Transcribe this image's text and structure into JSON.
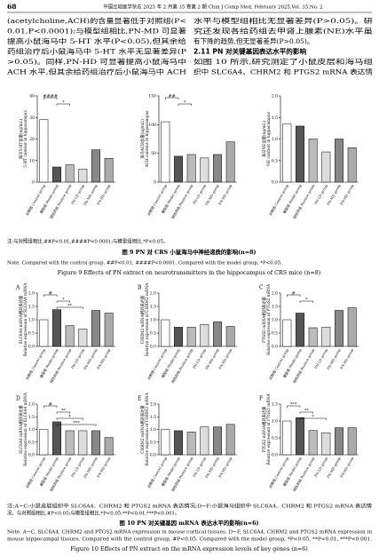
{
  "header": {
    "page": "68",
    "journal": "中国比较医学杂志 2025 年 2 月第 35 卷第 2 期  Chin J Comp Med, February 2025,Vol. 35,No. 2"
  },
  "text": {
    "left": [
      "(acetylcholine,ACH)的含量显著低于对照组(P<",
      "0.01,P<0.0001);与模型组相比,PN-MD 可显著",
      "提高小鼠海马中 5-HT 水平(P<0.05),但其余给",
      "药组治疗后小鼠海马中 5-HT 水平无显著差异(P",
      ">0.05)。同样,PN-HD 可显著提高小鼠海马中",
      "ACH 水平,但其余给药组治疗后小鼠海马中 ACH"
    ],
    "right_top": [
      "水平与模型组相比无显著差异(P>0.05)。研",
      "究还发现各给药组去甲肾上腺素(NE)水平虽",
      "有下降的趋势,但无显著差异(P>0.05)。"
    ],
    "section_heading": "2.11  PN 对关键基因表达水平的影响",
    "right_bottom": [
      "    如图 10 所示,研究测定了小鼠皮层和海马组",
      "织中 SLC6A4、CHRM2 和 PTGS2 mRNA 表达情"
    ]
  },
  "groups": [
    "对照组 Control group",
    "模型组 Model group",
    "阳性药组 Positive group",
    "PN-LD group",
    "PN-MD group",
    "PN-HD group"
  ],
  "group_colors": [
    "#ffffff",
    "#555555",
    "#bbbbbb",
    "#dddddd",
    "#888888",
    "#aaaaaa"
  ],
  "figure9": {
    "charts": [
      {
        "type": "bar",
        "ylabel_cn": "海马5-HT含量(ng/mL)",
        "ylabel_en": "5-HT content in hippocampus",
        "values": [
          29,
          7,
          8,
          6,
          15,
          11
        ],
        "ylim": [
          0,
          40
        ],
        "yticks": [
          0,
          10,
          20,
          30,
          40
        ],
        "annotations": [
          "####",
          "*"
        ]
      },
      {
        "type": "bar",
        "ylabel_cn": "海马ACH含量(ng/mL)",
        "ylabel_en": "ACH content in hippocampus",
        "values": [
          105,
          45,
          48,
          42,
          48,
          70
        ],
        "ylim": [
          0,
          150
        ],
        "yticks": [
          0,
          50,
          100,
          150
        ],
        "annotations": [
          "##",
          "*"
        ]
      },
      {
        "type": "bar",
        "ylabel_cn": "海马NE含量(ng/mL)",
        "ylabel_en": "NE content in hippocampus",
        "values": [
          1.35,
          1.3,
          1.0,
          0.7,
          1.0,
          0.8
        ],
        "ylim": [
          0,
          2
        ],
        "yticks": [
          {
            "value": 0,
            "label": "0.0"
          },
          {
            "value": 0.5,
            "label": "0.5"
          },
          {
            "value": 1,
            "label": "1.0"
          },
          {
            "value": 1.5,
            "label": "1.5"
          },
          {
            "value": 2,
            "label": "2.0"
          }
        ],
        "annotations": []
      }
    ],
    "note_cn": "注:与对照组相比,##P<0.01,####P<0.0001;与模型组相比,*P<0.05。",
    "caption_cn": "图 9  PN 对 CRS 小鼠海马中神经递质的影响(n=8)",
    "note_en": "Note. Compared with the control group, ##P<0.01, ####P<0.0001. Compared with the model group, *P<0.05.",
    "caption_en": "Figure 9  Effects of PN extract on neurotransmitters in the hippocampus of CRS mice (n=8)"
  },
  "figure10": {
    "charts": [
      {
        "type": "bar",
        "letter": "A",
        "ylabel_cn": "SLC6A4 mRNA相对表达量",
        "ylabel_en": "Relative expression of SLC6A4 mRNA",
        "values": [
          1.0,
          1.38,
          0.78,
          0.65,
          1.35,
          1.25
        ],
        "ylim": [
          0,
          2
        ],
        "yticks": [
          {
            "value": 0,
            "label": "0.0"
          },
          {
            "value": 0.5,
            "label": "0.5"
          },
          {
            "value": 1,
            "label": "1.0"
          },
          {
            "value": 1.5,
            "label": "1.5"
          },
          {
            "value": 2,
            "label": "2.0"
          }
        ],
        "annotations": [
          "#",
          "*",
          "**"
        ]
      },
      {
        "type": "bar",
        "letter": "B",
        "ylabel_cn": "CHRM2 mRNA相对表达量",
        "ylabel_en": "Relative expression of CHRM2 mRNA",
        "values": [
          1.0,
          0.72,
          0.72,
          0.82,
          0.92,
          0.75
        ],
        "ylim": [
          0,
          2
        ],
        "yticks": [
          {
            "value": 0,
            "label": "0.0"
          },
          {
            "value": 0.5,
            "label": "0.5"
          },
          {
            "value": 1,
            "label": "1.0"
          },
          {
            "value": 1.5,
            "label": "1.5"
          },
          {
            "value": 2,
            "label": "2.0"
          }
        ],
        "annotations": []
      },
      {
        "type": "bar",
        "letter": "C",
        "ylabel_cn": "PTGS2 mRNA相对表达量",
        "ylabel_en": "Relative expression of PTGS2 mRNA",
        "values": [
          1.0,
          1.25,
          0.7,
          0.72,
          1.35,
          1.45
        ],
        "ylim": [
          0,
          2
        ],
        "yticks": [
          {
            "value": 0,
            "label": "0.0"
          },
          {
            "value": 0.5,
            "label": "0.5"
          },
          {
            "value": 1,
            "label": "1.0"
          },
          {
            "value": 1.5,
            "label": "1.5"
          },
          {
            "value": 2,
            "label": "2.0"
          }
        ],
        "annotations": [
          "#",
          "*"
        ]
      },
      {
        "type": "bar",
        "letter": "D",
        "ylabel_cn": "SLC6A4 mRNA相对表达量",
        "ylabel_en": "Relative expression of SLC6A4 mRNA",
        "values": [
          1.0,
          1.3,
          0.95,
          0.95,
          0.95,
          0.68
        ],
        "ylim": [
          0,
          2
        ],
        "yticks": [
          {
            "value": 0,
            "label": "0.0"
          },
          {
            "value": 0.5,
            "label": "0.5"
          },
          {
            "value": 1,
            "label": "1.0"
          },
          {
            "value": 1.5,
            "label": "1.5"
          },
          {
            "value": 2,
            "label": "2.0"
          }
        ],
        "annotations": [
          "#",
          "**",
          "*",
          "***"
        ]
      },
      {
        "type": "bar",
        "letter": "E",
        "ylabel_cn": "CHRM2 mRNA相对表达量",
        "ylabel_en": "Relative expression of CHRM2 mRNA",
        "values": [
          1.0,
          0.95,
          0.9,
          1.1,
          1.1,
          1.2
        ],
        "ylim": [
          0,
          2
        ],
        "yticks": [
          {
            "value": 0,
            "label": "0.0"
          },
          {
            "value": 0.5,
            "label": "0.5"
          },
          {
            "value": 1,
            "label": "1.0"
          },
          {
            "value": 1.5,
            "label": "1.5"
          },
          {
            "value": 2,
            "label": "2.0"
          }
        ],
        "annotations": []
      },
      {
        "type": "bar",
        "letter": "F",
        "ylabel_cn": "PTGS2 mRNA相对表达量",
        "ylabel_en": "Relative expression of PTGS2 mRNA",
        "values": [
          1.0,
          1.1,
          0.72,
          0.65,
          0.8,
          0.8
        ],
        "ylim": [
          0,
          1.5
        ],
        "yticks": [
          {
            "value": 0,
            "label": "0.0"
          },
          {
            "value": 0.5,
            "label": "0.5"
          },
          {
            "value": 1,
            "label": "1.0"
          },
          {
            "value": 1.5,
            "label": "1.5"
          }
        ],
        "annotations": [
          "***",
          "**",
          "*"
        ]
      }
    ],
    "note_cn": [
      "注:A~C:小鼠皮层组织中 SLC6A4、CHRM2 和 PTGS2 mRNA 表达情况;D~F:小鼠海马组织中 SLC6A4、CHRM2 和 PTGS2 mRNA 表达情",
      "况。与对照组相比,#P<0.05;与模型组相比,*P<0.05,**P<0.01,***P<0.001。"
    ],
    "caption_cn": "图 10  PN 对关键基因 mRNA 表达水平的影响(n=6)",
    "note_en": [
      "Note. A~C, SLC6A4, CHRM2 and PTGS2 mRNA expression in mouse cortical tissues. D~F, SLC6A4, CHRM2 and PTGS2 mRNA expression in",
      "mouse hippocampal tissues. Compared with the control group, #P<0.05. Compared with the model group, *P<0.05, **P<0.01, ***P<0.001."
    ],
    "caption_en": "Figure 10  Effects of PN extract on the mRNA expression levels of key genes (n=6)"
  }
}
